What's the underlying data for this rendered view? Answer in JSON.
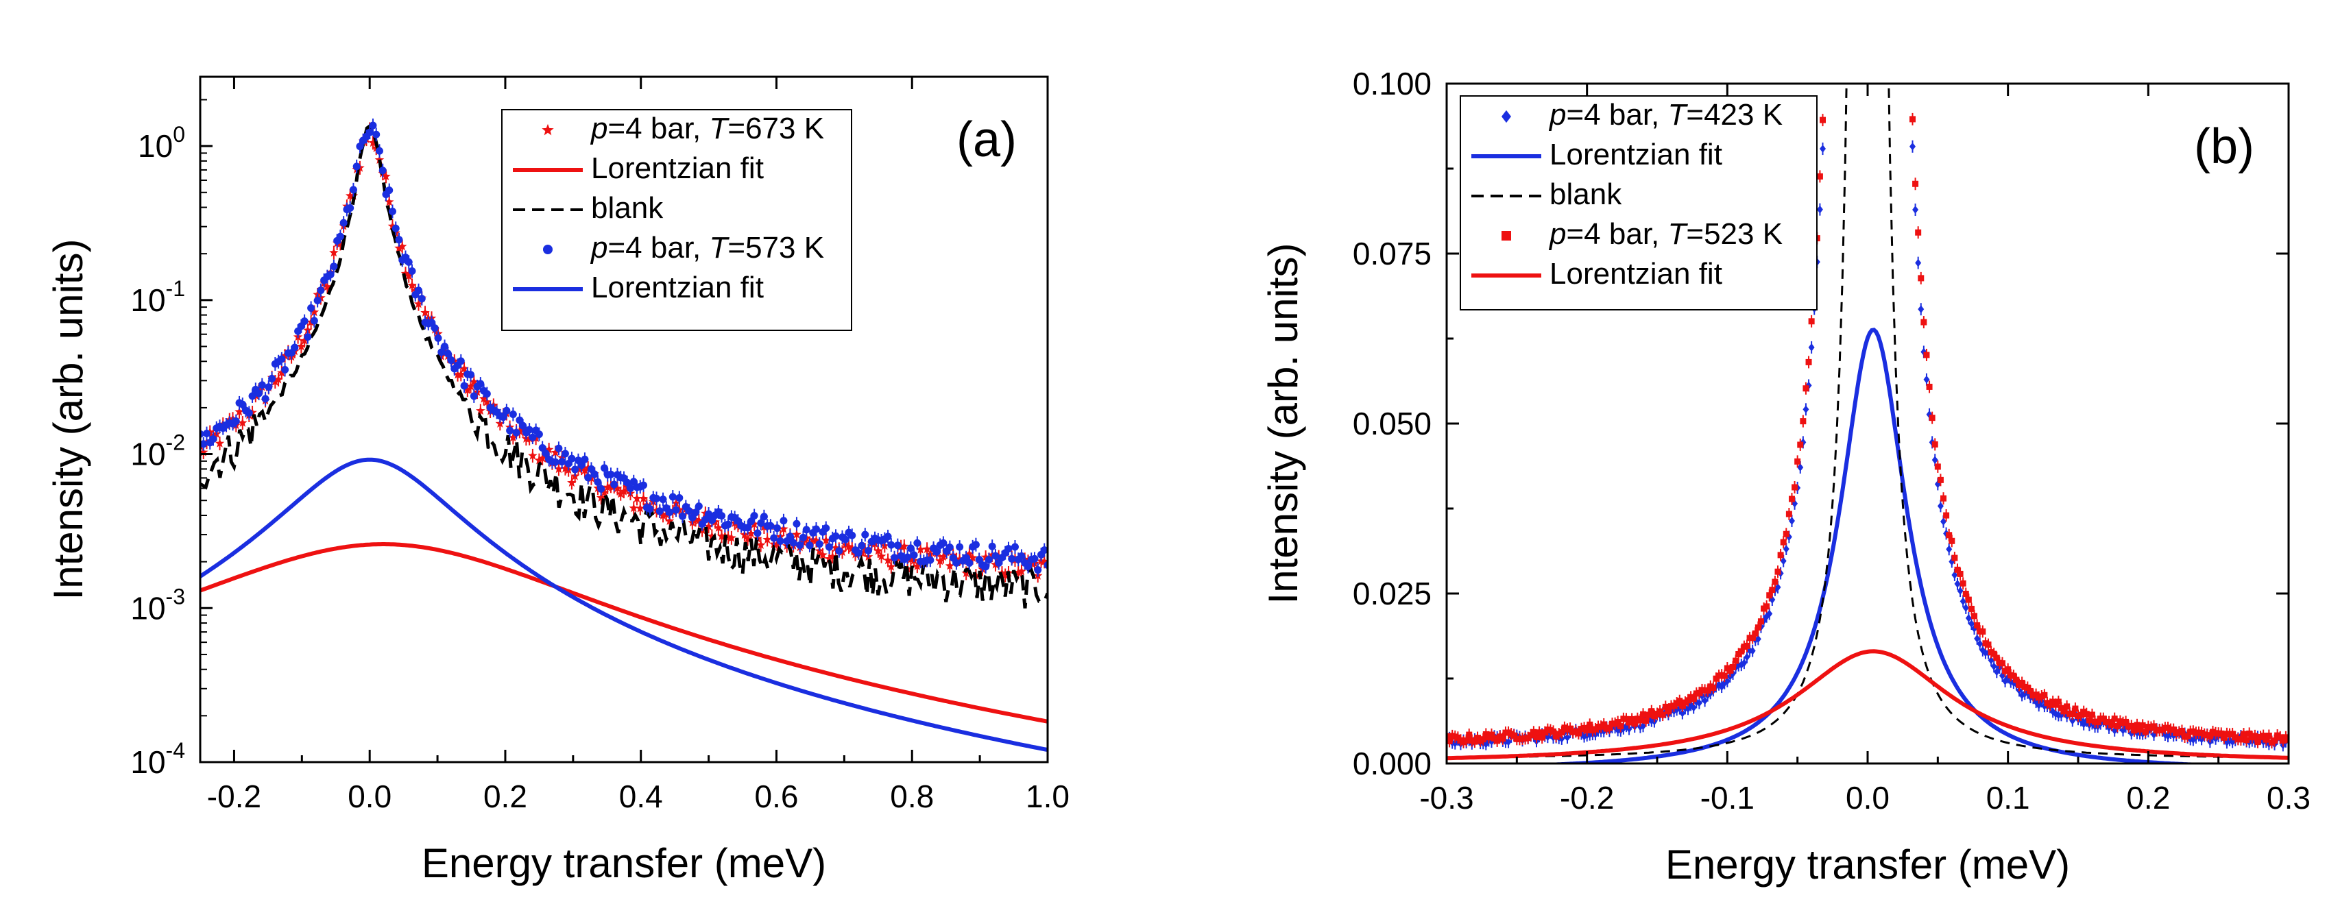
{
  "chart_data": [
    {
      "panel": "(a)",
      "type": "scatter",
      "yscale": "log",
      "xlabel": "Energy transfer (meV)",
      "ylabel": "Intensity (arb. units)",
      "xlim": [
        -0.25,
        1.0
      ],
      "ylim_exp": [
        -4,
        0.45
      ],
      "xticks": [
        -0.2,
        0.0,
        0.2,
        0.4,
        0.6,
        0.8,
        1.0
      ],
      "xtick_labels": [
        "-0.2",
        "0.0",
        "0.2",
        "0.4",
        "0.6",
        "0.8",
        "1.0"
      ],
      "ytick_exps": [
        -4,
        -3,
        -2,
        -1,
        0
      ],
      "ytick_mantissa": "10",
      "legend_position": "top-right",
      "legend": [
        {
          "prefix": "p",
          "mid": "=4 bar, ",
          "t": "T",
          "suffix": "=673 K",
          "kind": "marker",
          "marker": "star",
          "color": "#ee1111"
        },
        {
          "text": "Lorentzian fit",
          "kind": "line",
          "color": "#ee1111"
        },
        {
          "text": "blank",
          "kind": "dash",
          "color": "#000000"
        },
        {
          "prefix": "p",
          "mid": "=4 bar, ",
          "t": "T",
          "suffix": "=573 K",
          "kind": "marker",
          "marker": "circle",
          "color": "#1a2ee0"
        },
        {
          "text": "Lorentzian fit",
          "kind": "line",
          "color": "#1a2ee0"
        }
      ],
      "series": [
        {
          "name": "p=4 bar, T=673 K",
          "kind": "data",
          "color": "#ee1111",
          "marker": "star",
          "elastic_amp": 1.2,
          "elastic_hw": 0.022,
          "bg": 0.0012,
          "peak_hw": 0.09,
          "peak_amp": 0.002,
          "bg_slope": 0.0
        },
        {
          "name": "Lorentzian fit (673 K)",
          "kind": "fit",
          "color": "#ee1111",
          "center": 0.02,
          "amp": 0.0026,
          "hwhm": 0.27
        },
        {
          "name": "blank",
          "kind": "blank",
          "color": "#000000",
          "elastic_amp": 1.3,
          "elastic_hw": 0.018,
          "bg": 0.00095
        },
        {
          "name": "p=4 bar, T=573 K",
          "kind": "data",
          "color": "#1a2ee0",
          "marker": "circle",
          "elastic_amp": 1.25,
          "elastic_hw": 0.021,
          "bg": 0.0014,
          "peak_hw": 0.13,
          "peak_amp": 0.008,
          "bg_slope": 0.0
        },
        {
          "name": "Lorentzian fit (573 K)",
          "kind": "fit",
          "color": "#1a2ee0",
          "center": 0.0,
          "amp": 0.0092,
          "hwhm": 0.115
        }
      ]
    },
    {
      "panel": "(b)",
      "type": "scatter",
      "yscale": "linear",
      "xlabel": "Energy transfer (meV)",
      "ylabel": "Intensity (arb. units)",
      "xlim": [
        -0.3,
        0.3
      ],
      "ylim": [
        0.0,
        0.1
      ],
      "xticks": [
        -0.3,
        -0.2,
        -0.1,
        0.0,
        0.1,
        0.2,
        0.3
      ],
      "xtick_labels": [
        "-0.3",
        "-0.2",
        "-0.1",
        "0.0",
        "0.1",
        "0.2",
        "0.3"
      ],
      "yticks": [
        0.0,
        0.025,
        0.05,
        0.075,
        0.1
      ],
      "ytick_labels": [
        "0.000",
        "0.025",
        "0.050",
        "0.075",
        "0.100"
      ],
      "legend_position": "top-left",
      "legend": [
        {
          "prefix": "p",
          "mid": "=4 bar, ",
          "t": "T",
          "suffix": "=423 K",
          "kind": "marker",
          "marker": "diamond",
          "color": "#1a2ee0"
        },
        {
          "text": "Lorentzian fit",
          "kind": "line",
          "color": "#1a2ee0"
        },
        {
          "text": "blank",
          "kind": "dash",
          "color": "#000000"
        },
        {
          "prefix": "p",
          "mid": "=4 bar, ",
          "t": "T",
          "suffix": "=523 K",
          "kind": "marker",
          "marker": "square",
          "color": "#ee1111"
        },
        {
          "text": "Lorentzian fit",
          "kind": "line",
          "color": "#ee1111"
        }
      ],
      "series": [
        {
          "name": "p=4 bar, T=423 K",
          "kind": "data",
          "color": "#1a2ee0",
          "marker": "diamond",
          "elastic_amp": 1.2,
          "elastic_hw": 0.0085,
          "bg": 0.002,
          "peak_hw": 0.03,
          "peak_amp": 0.02
        },
        {
          "name": "Lorentzian fit (423 K)",
          "kind": "fit",
          "color": "#1a2ee0",
          "center": 0.004,
          "amp": 0.065,
          "hwhm": 0.029,
          "offset": -0.0012
        },
        {
          "name": "blank",
          "kind": "blank",
          "color": "#000000",
          "elastic_amp": 1.2,
          "elastic_hw": 0.0045,
          "bg": 0.0006
        },
        {
          "name": "p=4 bar, T=523 K",
          "kind": "data",
          "color": "#ee1111",
          "marker": "square",
          "elastic_amp": 1.2,
          "elastic_hw": 0.0088,
          "bg": 0.0022,
          "peak_hw": 0.045,
          "peak_amp": 0.013
        },
        {
          "name": "Lorentzian fit (523 K)",
          "kind": "fit",
          "color": "#ee1111",
          "center": 0.004,
          "amp": 0.0165,
          "hwhm": 0.068,
          "offset": 0.0
        }
      ]
    }
  ]
}
